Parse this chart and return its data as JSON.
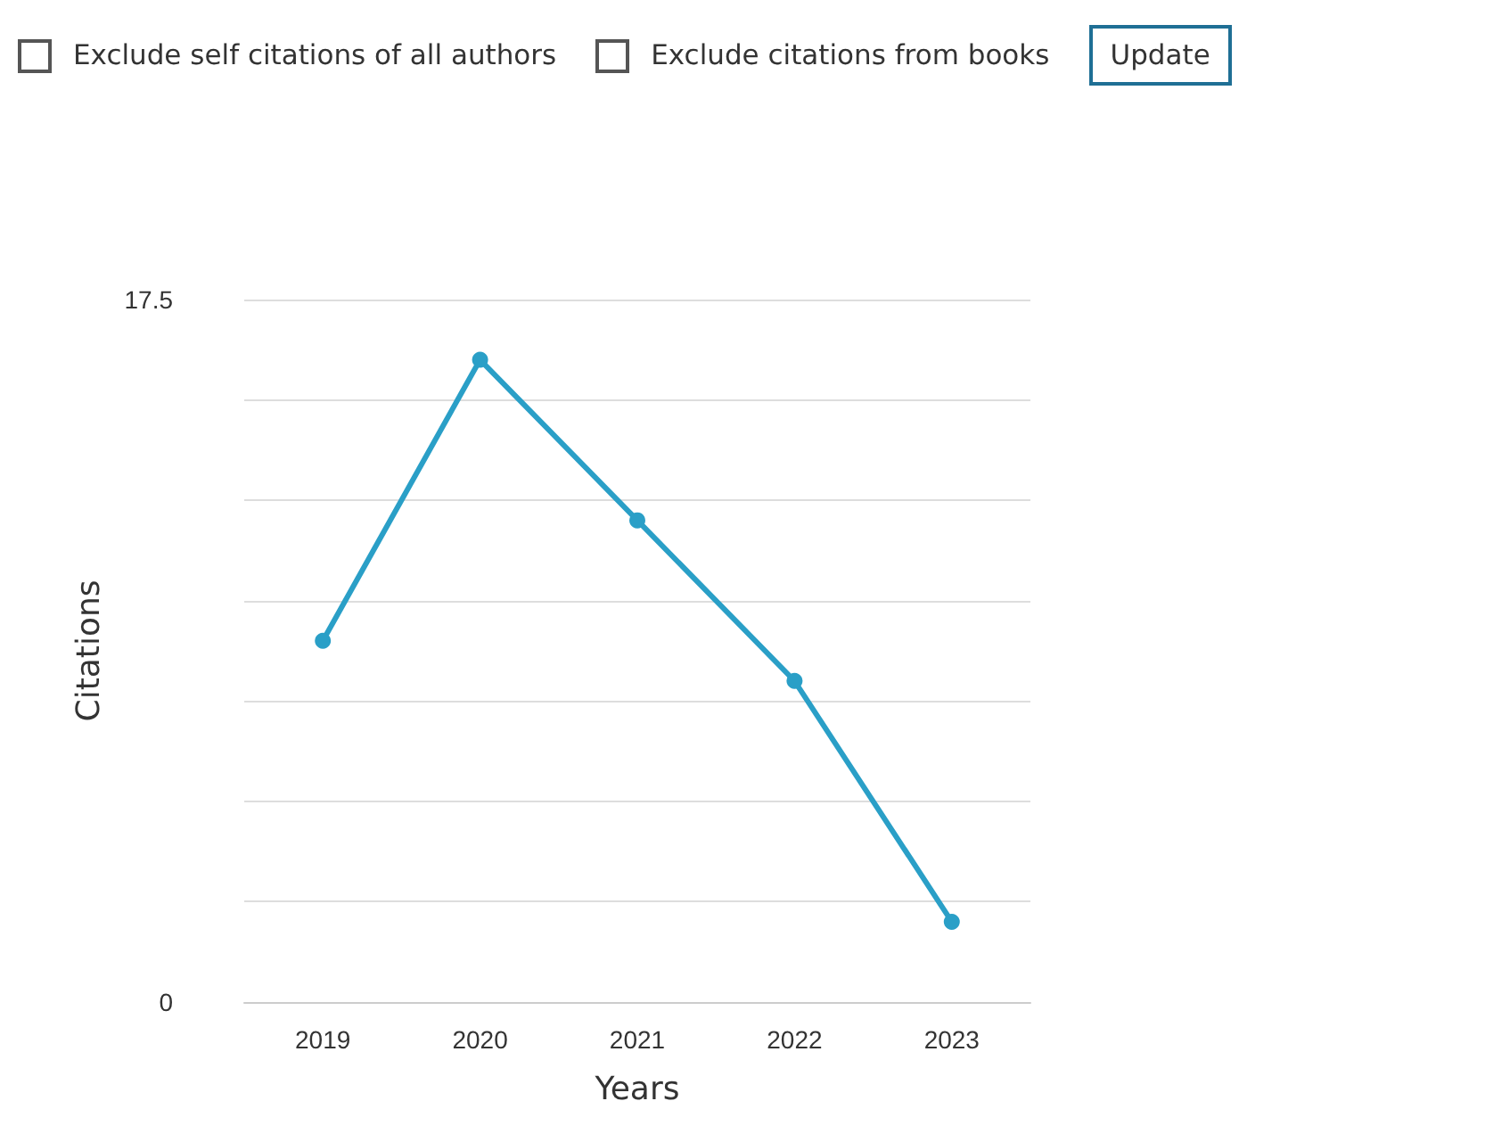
{
  "chart_data": {
    "type": "line",
    "annotations": [
      "Exclude self citations of all authors",
      "Exclude citations from books",
      "Update"
    ],
    "xlabel": "Years",
    "ylabel": "Citations",
    "categories": [
      "2019",
      "2020",
      "2021",
      "2022",
      "2023"
    ],
    "series": [
      {
        "color": "#2a9fc7",
        "values": [
          9,
          16,
          12,
          8,
          2
        ]
      }
    ],
    "ylim": [
      0,
      17.5
    ],
    "yticks": [
      0,
      {
        "value": 2.5,
        "label": null
      },
      {
        "value": 5,
        "label": null
      },
      {
        "value": 7.5,
        "label": null
      },
      {
        "value": 10,
        "label": null
      },
      {
        "value": 12.5,
        "label": null
      },
      {
        "value": 15,
        "label": null
      },
      17.5
    ],
    "grid": "y",
    "marker": "circle",
    "line_style": "solid"
  }
}
